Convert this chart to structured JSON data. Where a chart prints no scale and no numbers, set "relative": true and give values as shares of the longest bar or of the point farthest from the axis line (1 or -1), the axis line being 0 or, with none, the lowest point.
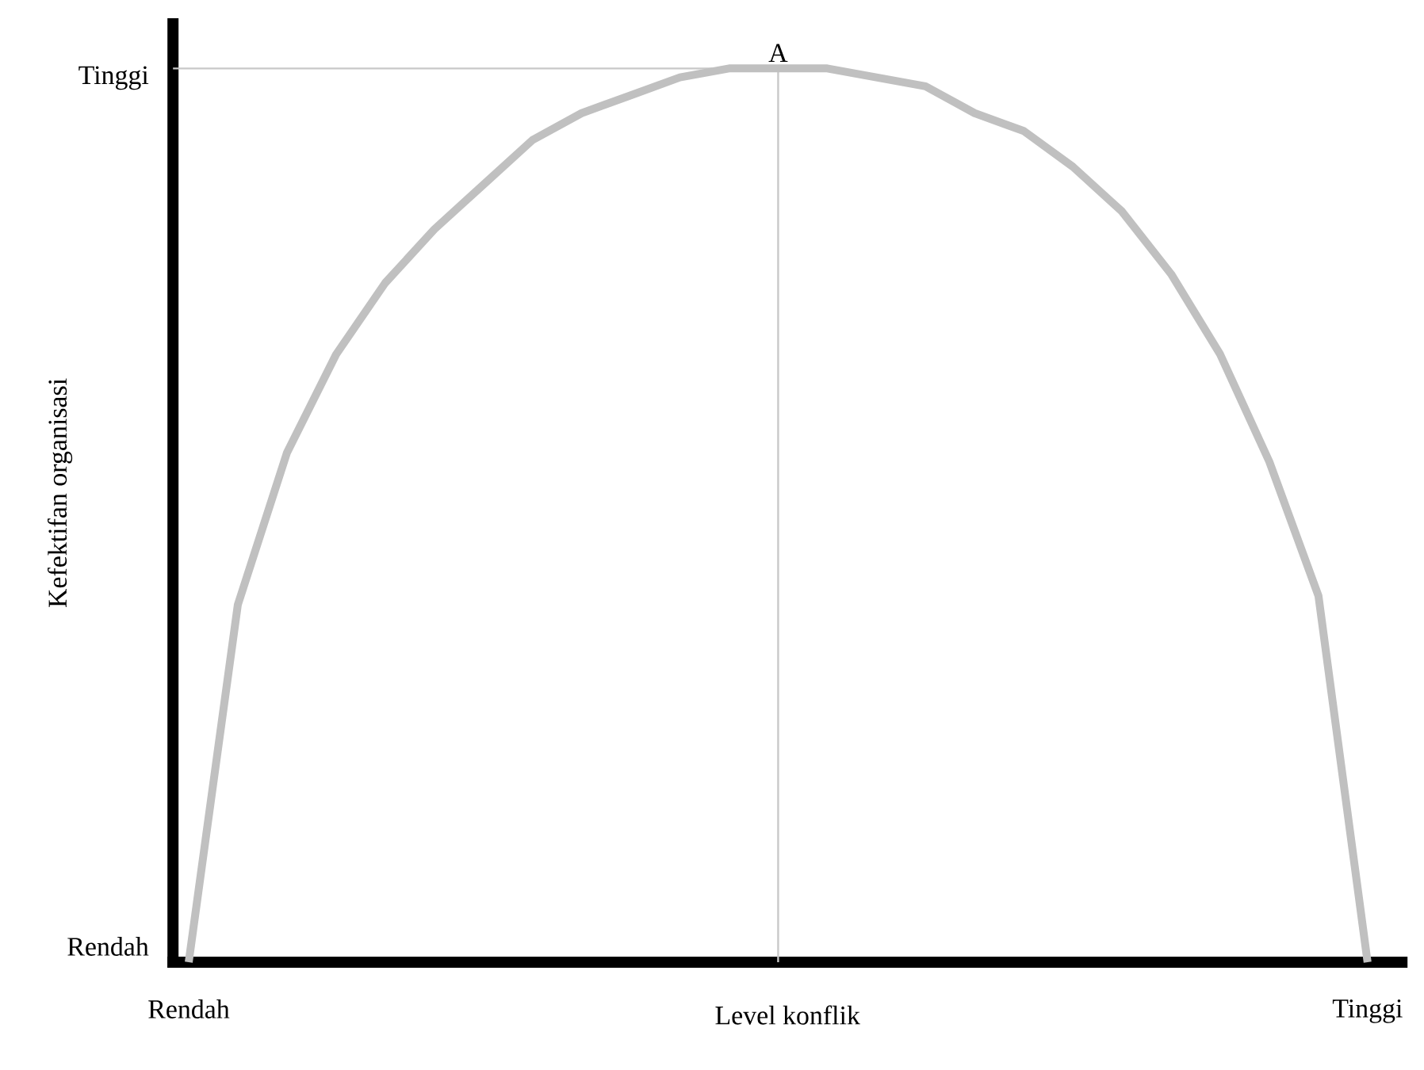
{
  "chart_data": {
    "type": "line",
    "relative": true,
    "xlabel": "Level konflik",
    "ylabel": "Kefektifan organisasi",
    "categories": [
      "Rendah",
      null,
      null,
      null,
      null,
      null,
      null,
      null,
      null,
      null,
      null,
      null,
      null,
      null,
      null,
      null,
      null,
      null,
      null,
      null,
      null,
      null,
      null,
      null,
      "Tinggi"
    ],
    "values": [
      0,
      0.4,
      0.57,
      0.68,
      0.76,
      0.82,
      0.87,
      0.92,
      0.95,
      0.97,
      0.99,
      1.0,
      1.0,
      1.0,
      0.99,
      0.98,
      0.95,
      0.93,
      0.89,
      0.84,
      0.77,
      0.68,
      0.56,
      0.41,
      0
    ],
    "color": "#c0c0c0",
    "annotations": [
      "A",
      "Tinggi",
      "Rendah"
    ]
  }
}
